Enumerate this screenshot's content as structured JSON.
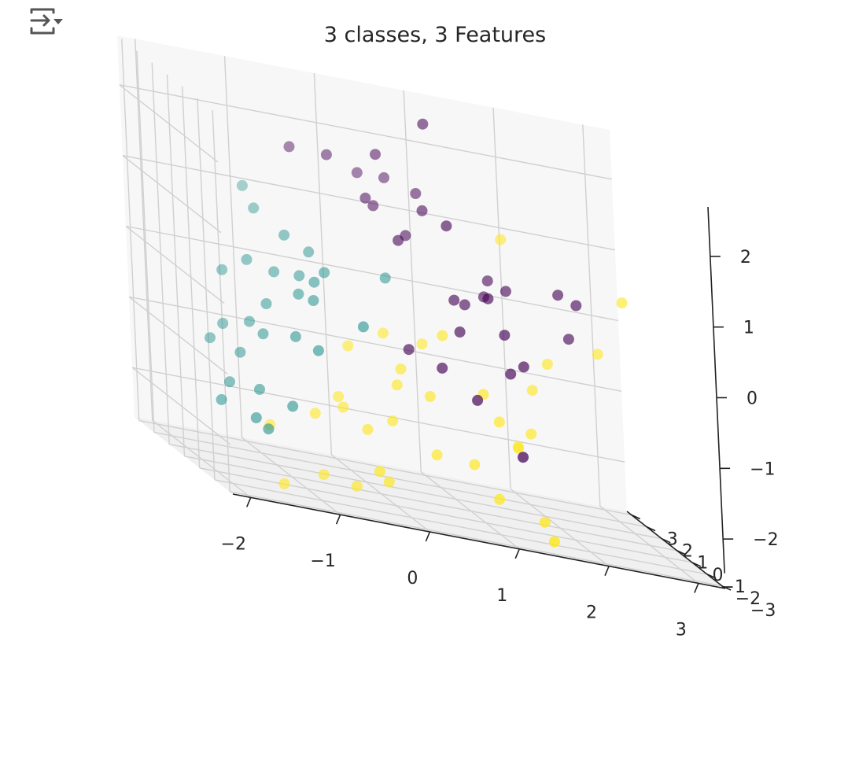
{
  "toolbar": {
    "icon": "output-collapse-icon"
  },
  "chart_data": {
    "type": "scatter",
    "title": "3 classes, 3 Features",
    "projection": "3d",
    "grid": true,
    "x_ticks": [
      "−2",
      "−1",
      "0",
      "1",
      "2",
      "3"
    ],
    "y_ticks": [
      "−3",
      "−2",
      "−1",
      "0",
      "1",
      "2",
      "3"
    ],
    "z_ticks": [
      "−2",
      "−1",
      "0",
      "1",
      "2"
    ],
    "xlim": [
      -2.2,
      3.3
    ],
    "ylim": [
      -3.2,
      3.3
    ],
    "zlim": [
      -2.7,
      2.7
    ],
    "colors": {
      "class0": "#440154",
      "class1": "#21918c",
      "class2": "#fde725"
    },
    "series": [
      {
        "class": 0,
        "points": [
          [
            0.9,
            1.5,
            2.5
          ],
          [
            0.3,
            2.5,
            1.5
          ],
          [
            -0.6,
            1.6,
            1.8
          ],
          [
            -0.2,
            1.5,
            1.8
          ],
          [
            0.4,
            1.8,
            1.9
          ],
          [
            0.6,
            2.5,
            1.5
          ],
          [
            0.9,
            2.2,
            1.4
          ],
          [
            0.2,
            1.4,
            1.3
          ],
          [
            0.3,
            1.5,
            1.2
          ],
          [
            0.8,
            1.2,
            1.3
          ],
          [
            1.0,
            0.8,
            1.2
          ],
          [
            0.6,
            1.2,
            0.9
          ],
          [
            0.4,
            0.5,
            0.9
          ],
          [
            1.6,
            1.8,
            0.4
          ],
          [
            1.8,
            1.8,
            0.3
          ],
          [
            2.5,
            2.5,
            0.3
          ],
          [
            2.7,
            2.5,
            0.2
          ],
          [
            2.6,
            2.5,
            -0.3
          ],
          [
            1.0,
            0.5,
            0.2
          ],
          [
            1.2,
            1.0,
            0.1
          ],
          [
            1.5,
            1.5,
            0.2
          ],
          [
            1.4,
            0.6,
            0.3
          ],
          [
            1.6,
            0.8,
            -0.2
          ],
          [
            1.0,
            0.2,
            -0.2
          ],
          [
            1.8,
            0.8,
            -0.6
          ],
          [
            1.6,
            0.5,
            -0.7
          ],
          [
            0.3,
            -0.5,
            -0.5
          ],
          [
            0.7,
            -0.3,
            -0.7
          ],
          [
            1.0,
            -0.8,
            -1.0
          ],
          [
            1.5,
            -0.7,
            -1.7
          ]
        ]
      },
      {
        "class": 1,
        "points": [
          [
            -1.0,
            2.5,
            1.0
          ],
          [
            -1.0,
            1.8,
            0.8
          ],
          [
            -0.8,
            1.0,
            0.6
          ],
          [
            -0.5,
            1.2,
            0.4
          ],
          [
            -1.3,
            0.6,
            0.2
          ],
          [
            -1.0,
            0.6,
            0.1
          ],
          [
            -0.7,
            0.7,
            0.1
          ],
          [
            -0.4,
            0.8,
            0.2
          ],
          [
            -0.6,
            0.3,
            0.1
          ],
          [
            -1.6,
            0.5,
            0.0
          ],
          [
            -0.8,
            0.2,
            -0.1
          ],
          [
            -1.2,
            0.0,
            -0.3
          ],
          [
            -0.7,
            -0.2,
            -0.1
          ],
          [
            -1.4,
            0.0,
            -0.6
          ],
          [
            -1.7,
            0.0,
            -0.7
          ],
          [
            -1.3,
            -0.3,
            -0.7
          ],
          [
            -1.0,
            -0.7,
            -0.6
          ],
          [
            -1.9,
            -0.3,
            -0.9
          ],
          [
            -1.6,
            -0.5,
            -1.0
          ],
          [
            -0.8,
            -1.0,
            -0.7
          ],
          [
            -1.8,
            -0.9,
            -1.4
          ],
          [
            -1.5,
            -1.1,
            -1.4
          ],
          [
            -2.0,
            -1.5,
            -1.6
          ],
          [
            -1.2,
            -1.5,
            -1.5
          ],
          [
            -1.7,
            -2.0,
            -1.7
          ],
          [
            -1.6,
            -2.2,
            -1.8
          ],
          [
            0.4,
            1.5,
            0.2
          ],
          [
            -0.2,
            -0.5,
            -0.3
          ]
        ]
      },
      {
        "class": 2,
        "points": [
          [
            1.8,
            2.0,
            1.0
          ],
          [
            3.3,
            3.0,
            0.3
          ],
          [
            3.0,
            3.0,
            -0.5
          ],
          [
            2.2,
            1.6,
            -0.6
          ],
          [
            2.0,
            1.5,
            -1.0
          ],
          [
            0.8,
            0.2,
            -0.3
          ],
          [
            0.6,
            0.4,
            -0.5
          ],
          [
            0.1,
            0.0,
            -0.4
          ],
          [
            -0.4,
            -0.6,
            -0.6
          ],
          [
            0.2,
            -0.5,
            -0.8
          ],
          [
            0.1,
            -0.8,
            -1.0
          ],
          [
            0.5,
            -0.6,
            -1.1
          ],
          [
            1.2,
            0.0,
            -1.0
          ],
          [
            1.3,
            -0.4,
            -1.3
          ],
          [
            1.8,
            0.5,
            -1.5
          ],
          [
            1.6,
            0.2,
            -1.7
          ],
          [
            1.5,
            -0.4,
            -1.6
          ],
          [
            -0.6,
            -1.0,
            -1.3
          ],
          [
            -0.6,
            -1.3,
            -1.4
          ],
          [
            -0.4,
            -1.7,
            -1.6
          ],
          [
            0.4,
            -1.5,
            -1.8
          ],
          [
            0.0,
            -1.0,
            -1.5
          ],
          [
            -1.0,
            -1.8,
            -1.5
          ],
          [
            -1.5,
            -1.7,
            -1.8
          ],
          [
            -1.0,
            -2.2,
            -2.3
          ],
          [
            -0.3,
            -2.4,
            -2.2
          ],
          [
            -0.5,
            -3.0,
            -2.0
          ],
          [
            1.0,
            -2.0,
            -2.2
          ],
          [
            1.5,
            -2.0,
            -2.4
          ],
          [
            1.4,
            -3.2,
            -2.5
          ],
          [
            -1.5,
            -2.5,
            -2.5
          ],
          [
            0.9,
            -1.0,
            -1.9
          ],
          [
            -0.6,
            -2.0,
            -2.4
          ]
        ]
      }
    ]
  }
}
